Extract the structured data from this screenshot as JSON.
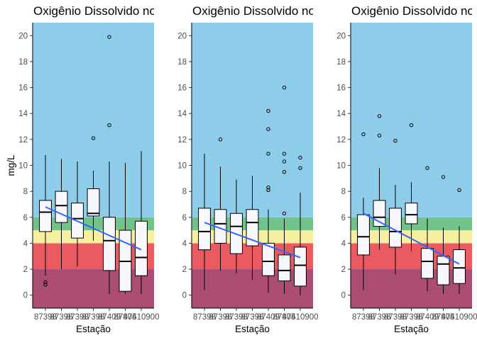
{
  "colors": {
    "band_0_2": "#AB4D73",
    "band_2_4": "#EC5A61",
    "band_4_5": "#F7EFA0",
    "band_5_6": "#72C38A",
    "band_6_up": "#8ECDEA",
    "box_fill": "#F7F7FC",
    "trend_line": "#3366FF"
  },
  "chart_data": [
    {
      "type": "box",
      "title": "Oxigênio Dissolvido no",
      "xlabel": "Estação",
      "ylabel": "mg/L",
      "ylim": [
        -1,
        21
      ],
      "yticks": [
        0,
        2,
        4,
        6,
        8,
        10,
        12,
        14,
        16,
        18,
        20
      ],
      "categories": [
        "87398500",
        "87398900",
        "87398950",
        "87398980",
        "87409900",
        "87405500",
        "87410900"
      ],
      "tick_labels": [
        "87398",
        "87398",
        "87398",
        "87398",
        "87409",
        "87405",
        "87410900"
      ],
      "bands": [
        {
          "from": -1,
          "to": 2,
          "color": "#AB4D73"
        },
        {
          "from": 2,
          "to": 4,
          "color": "#EC5A61"
        },
        {
          "from": 4,
          "to": 5,
          "color": "#F7EFA0"
        },
        {
          "from": 5,
          "to": 6,
          "color": "#72C38A"
        },
        {
          "from": 6,
          "to": 21,
          "color": "#8ECDEA"
        }
      ],
      "boxes": [
        {
          "min": 1.5,
          "q1": 4.9,
          "median": 6.4,
          "q3": 7.3,
          "max": 10.8,
          "outliers": [
            0.8,
            1.0
          ]
        },
        {
          "min": 2.0,
          "q1": 5.6,
          "median": 6.9,
          "q3": 8.0,
          "max": 10.5,
          "outliers": []
        },
        {
          "min": 2.2,
          "q1": 4.4,
          "median": 5.9,
          "q3": 7.1,
          "max": 10.3,
          "outliers": []
        },
        {
          "min": 4.2,
          "q1": 6.1,
          "median": 6.3,
          "q3": 8.2,
          "max": 9.6,
          "outliers": [
            12.1
          ]
        },
        {
          "min": 0.1,
          "q1": 1.9,
          "median": 4.2,
          "q3": 6.0,
          "max": 10.3,
          "outliers": [
            13.1,
            19.9
          ]
        },
        {
          "min": 0.1,
          "q1": 0.3,
          "median": 2.6,
          "q3": 5.0,
          "max": 10.2,
          "outliers": []
        },
        {
          "min": 0.1,
          "q1": 1.5,
          "median": 2.9,
          "q3": 5.7,
          "max": 11.1,
          "outliers": []
        }
      ],
      "trend": {
        "start": 6.8,
        "end": 3.5
      }
    },
    {
      "type": "box",
      "title": "Oxigênio Dissolvido no",
      "xlabel": "Estação",
      "ylabel": "",
      "ylim": [
        -1,
        21
      ],
      "yticks": [
        0,
        2,
        4,
        6,
        8,
        10,
        12,
        14,
        16,
        18,
        20
      ],
      "categories": [
        "87398500",
        "87398900",
        "87398950",
        "87398980",
        "87409900",
        "87405500",
        "87410900"
      ],
      "tick_labels": [
        "87398",
        "87398",
        "87398",
        "87398",
        "87409",
        "87405",
        "87410900"
      ],
      "bands": [
        {
          "from": -1,
          "to": 2,
          "color": "#AB4D73"
        },
        {
          "from": 2,
          "to": 4,
          "color": "#EC5A61"
        },
        {
          "from": 4,
          "to": 5,
          "color": "#F7EFA0"
        },
        {
          "from": 5,
          "to": 6,
          "color": "#72C38A"
        },
        {
          "from": 6,
          "to": 21,
          "color": "#8ECDEA"
        }
      ],
      "boxes": [
        {
          "min": 0.4,
          "q1": 3.5,
          "median": 4.9,
          "q3": 6.7,
          "max": 10.9,
          "outliers": []
        },
        {
          "min": 1.9,
          "q1": 4.0,
          "median": 5.5,
          "q3": 6.6,
          "max": 9.9,
          "outliers": [
            12.0
          ]
        },
        {
          "min": 1.7,
          "q1": 3.2,
          "median": 5.3,
          "q3": 6.3,
          "max": 8.9,
          "outliers": []
        },
        {
          "min": 1.2,
          "q1": 3.8,
          "median": 5.6,
          "q3": 6.6,
          "max": 9.2,
          "outliers": []
        },
        {
          "min": 0.2,
          "q1": 1.5,
          "median": 2.6,
          "q3": 4.0,
          "max": 6.6,
          "outliers": [
            8.1,
            8.3,
            10.9,
            12.8,
            14.2
          ]
        },
        {
          "min": 0.1,
          "q1": 1.1,
          "median": 1.9,
          "q3": 3.1,
          "max": 5.9,
          "outliers": [
            6.3,
            9.5,
            10.3,
            10.9,
            16.0
          ]
        },
        {
          "min": 0.0,
          "q1": 0.7,
          "median": 2.3,
          "q3": 3.7,
          "max": 7.9,
          "outliers": [
            9.8,
            10.6
          ]
        }
      ],
      "trend": {
        "start": 5.6,
        "end": 2.9
      }
    },
    {
      "type": "box",
      "title": "Oxigênio Dissolvido no",
      "xlabel": "Estação",
      "ylabel": "",
      "ylim": [
        -1,
        21
      ],
      "yticks": [
        0,
        2,
        4,
        6,
        8,
        10,
        12,
        14,
        16,
        18,
        20
      ],
      "categories": [
        "87398500",
        "87398900",
        "87398950",
        "87398980",
        "87409900",
        "87405500",
        "87410900"
      ],
      "tick_labels": [
        "87398",
        "87398",
        "87398",
        "87398",
        "87409",
        "87405",
        "87410900"
      ],
      "bands": [
        {
          "from": -1,
          "to": 2,
          "color": "#AB4D73"
        },
        {
          "from": 2,
          "to": 4,
          "color": "#EC5A61"
        },
        {
          "from": 4,
          "to": 5,
          "color": "#F7EFA0"
        },
        {
          "from": 5,
          "to": 6,
          "color": "#72C38A"
        },
        {
          "from": 6,
          "to": 21,
          "color": "#8ECDEA"
        }
      ],
      "boxes": [
        {
          "min": 0.4,
          "q1": 3.1,
          "median": 4.5,
          "q3": 6.2,
          "max": 7.5,
          "outliers": [
            12.4
          ]
        },
        {
          "min": 3.5,
          "q1": 5.3,
          "median": 6.0,
          "q3": 7.3,
          "max": 9.8,
          "outliers": [
            12.3,
            13.8
          ]
        },
        {
          "min": 1.6,
          "q1": 3.7,
          "median": 4.9,
          "q3": 6.7,
          "max": 8.5,
          "outliers": [
            11.9
          ]
        },
        {
          "min": 3.4,
          "q1": 5.5,
          "median": 6.2,
          "q3": 7.1,
          "max": 8.7,
          "outliers": [
            13.1
          ]
        },
        {
          "min": 0.3,
          "q1": 1.3,
          "median": 2.6,
          "q3": 3.6,
          "max": 5.9,
          "outliers": [
            9.8
          ]
        },
        {
          "min": 0.1,
          "q1": 0.8,
          "median": 2.4,
          "q3": 3.0,
          "max": 5.2,
          "outliers": [
            9.1
          ]
        },
        {
          "min": 0.1,
          "q1": 0.9,
          "median": 2.1,
          "q3": 3.5,
          "max": 5.3,
          "outliers": [
            8.1
          ]
        }
      ],
      "trend": {
        "start": 6.3,
        "end": 2.4
      }
    }
  ]
}
